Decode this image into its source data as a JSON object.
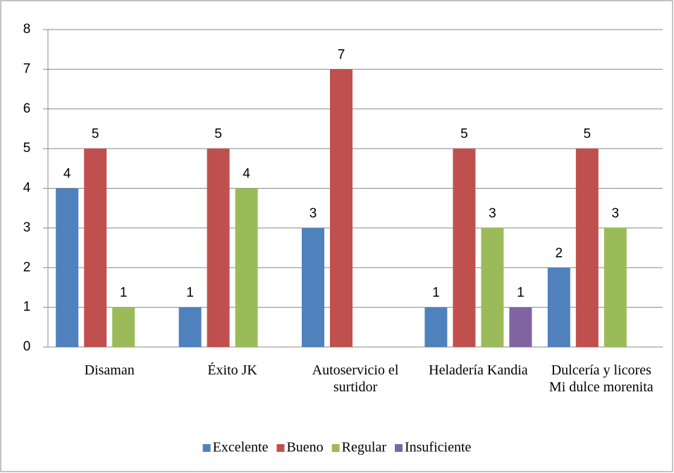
{
  "chart_data": {
    "type": "bar",
    "categories": [
      "Disaman",
      "Éxito JK",
      "Autoservicio el surtidor",
      "Heladería Kandia",
      "Dulcería y licores Mi dulce morenita"
    ],
    "series": [
      {
        "name": "Excelente",
        "color": "#4f81bd",
        "values": [
          4,
          1,
          3,
          1,
          2
        ]
      },
      {
        "name": "Bueno",
        "color": "#c0504d",
        "values": [
          5,
          5,
          7,
          5,
          5
        ]
      },
      {
        "name": "Regular",
        "color": "#9bbb59",
        "values": [
          1,
          4,
          null,
          3,
          3
        ]
      },
      {
        "name": "Insuficiente",
        "color": "#8064a2",
        "values": [
          null,
          null,
          null,
          1,
          null
        ]
      }
    ],
    "ylim": [
      0,
      8
    ],
    "yticks": [
      0,
      1,
      2,
      3,
      4,
      5,
      6,
      7,
      8
    ],
    "grid": true,
    "legend": "bottom"
  }
}
